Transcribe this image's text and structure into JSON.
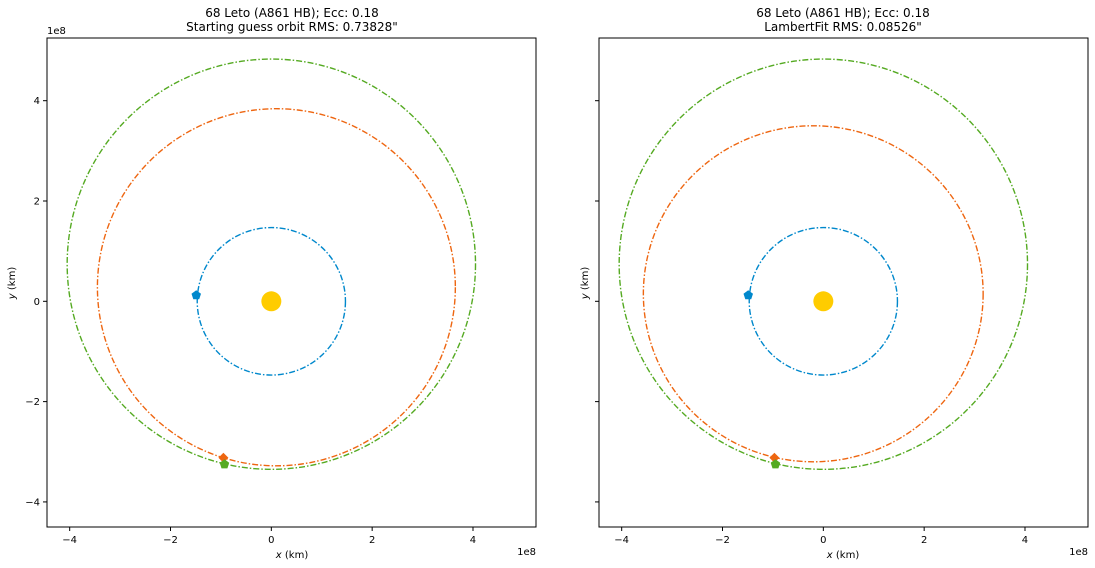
{
  "chart_data": [
    {
      "type": "line",
      "title_line1": "68 Leto (A861 HB); Ecc: 0.18",
      "title_line2": "Starting guess orbit RMS: 0.73828\"",
      "xlabel_var": "x",
      "xlabel_unit": " (km)",
      "ylabel_var": "y",
      "ylabel_unit": " (km)",
      "x_offset_label": "1e8",
      "y_offset_label": "1e8",
      "xlim": [
        -4.45,
        5.25
      ],
      "ylim": [
        -4.5,
        5.25
      ],
      "x_ticks": [
        -4,
        -2,
        0,
        2,
        4
      ],
      "y_ticks": [
        -4,
        -2,
        0,
        2,
        4
      ],
      "x_tick_labels": [
        "−4",
        "−2",
        "0",
        "2",
        "4"
      ],
      "y_tick_labels": [
        "−4",
        "−2",
        "0",
        "2",
        "4"
      ],
      "show_y_tick_labels": true,
      "grid": false,
      "sun": {
        "x": 0,
        "y": 0,
        "color": "#ffcc00"
      },
      "series": [
        {
          "color": "#0088cc",
          "center": [
            0,
            0
          ],
          "a": 1.47,
          "b": 1.47,
          "marker": [
            -1.49,
            0.12
          ],
          "marker_shape": "pentagon"
        },
        {
          "color": "#ee6611",
          "center": [
            0.1,
            0.28
          ],
          "a": 3.55,
          "b": 3.56,
          "marker": [
            -0.95,
            -3.12
          ],
          "marker_shape": "diamond"
        },
        {
          "color": "#55aa22",
          "center": [
            0,
            0.74
          ],
          "a": 4.05,
          "b": 4.09,
          "marker": [
            -0.93,
            -3.25
          ],
          "marker_shape": "pentagon"
        }
      ]
    },
    {
      "type": "line",
      "title_line1": "68 Leto (A861 HB); Ecc: 0.18",
      "title_line2": "LambertFit RMS: 0.08526\"",
      "xlabel_var": "x",
      "xlabel_unit": " (km)",
      "ylabel_var": "y",
      "ylabel_unit": " (km)",
      "x_offset_label": "1e8",
      "y_offset_label": "",
      "xlim": [
        -4.45,
        5.25
      ],
      "ylim": [
        -4.5,
        5.25
      ],
      "x_ticks": [
        -4,
        -2,
        0,
        2,
        4
      ],
      "y_ticks": [
        -4,
        -2,
        0,
        2,
        4
      ],
      "x_tick_labels": [
        "−4",
        "−2",
        "0",
        "2",
        "4"
      ],
      "y_tick_labels": [],
      "show_y_tick_labels": false,
      "grid": false,
      "sun": {
        "x": 0,
        "y": 0,
        "color": "#ffcc00"
      },
      "series": [
        {
          "color": "#0088cc",
          "center": [
            0,
            0
          ],
          "a": 1.47,
          "b": 1.47,
          "marker": [
            -1.49,
            0.12
          ],
          "marker_shape": "pentagon"
        },
        {
          "color": "#ee6611",
          "center": [
            -0.2,
            0.15
          ],
          "a": 3.37,
          "b": 3.35,
          "marker": [
            -0.97,
            -3.12
          ],
          "marker_shape": "diamond"
        },
        {
          "color": "#55aa22",
          "center": [
            0,
            0.74
          ],
          "a": 4.05,
          "b": 4.09,
          "marker": [
            -0.95,
            -3.25
          ],
          "marker_shape": "pentagon"
        }
      ]
    }
  ]
}
